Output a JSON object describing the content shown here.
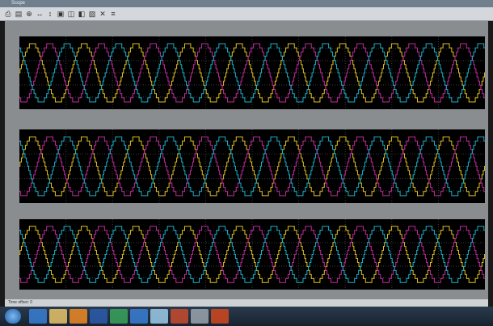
{
  "window": {
    "title": "Scope"
  },
  "toolbar": {
    "buttons": [
      {
        "name": "print-icon",
        "glyph": "⎙"
      },
      {
        "name": "parameters-icon",
        "glyph": "▤"
      },
      {
        "name": "zoom-in-icon",
        "glyph": "⊕"
      },
      {
        "name": "zoom-x-icon",
        "glyph": "↔"
      },
      {
        "name": "zoom-y-icon",
        "glyph": "↕"
      },
      {
        "name": "autoscale-icon",
        "glyph": "▣"
      },
      {
        "name": "save-axes-icon",
        "glyph": "◫"
      },
      {
        "name": "restore-axes-icon",
        "glyph": "◧"
      },
      {
        "name": "floating-scope-icon",
        "glyph": "▧"
      },
      {
        "name": "lock-axes-icon",
        "glyph": "✕"
      },
      {
        "name": "signal-selection-icon",
        "glyph": "≡"
      }
    ]
  },
  "status": {
    "text": "Time offset:  0"
  },
  "taskbar": {
    "apps": [
      {
        "name": "internet-explorer-icon",
        "color": "#3a7fd5"
      },
      {
        "name": "file-explorer-icon",
        "color": "#e9c46a"
      },
      {
        "name": "media-player-icon",
        "color": "#f08a24"
      },
      {
        "name": "word-icon",
        "color": "#2b5cab"
      },
      {
        "name": "chrome-icon",
        "color": "#3aa55c"
      },
      {
        "name": "bluetooth-icon",
        "color": "#3a7fd5"
      },
      {
        "name": "notepad-icon",
        "color": "#9ecbe8"
      },
      {
        "name": "matlab-icon",
        "color": "#c84b2f"
      },
      {
        "name": "settings-icon",
        "color": "#9aa4ae"
      },
      {
        "name": "powerpoint-icon",
        "color": "#d1481f"
      }
    ],
    "clock": {
      "time": "",
      "date": ""
    }
  },
  "colors": {
    "plot_bg": "#000000",
    "grid": "#3a3a3a",
    "series": [
      "#e0c020",
      "#c02a9a",
      "#1ab0c8"
    ]
  },
  "chart_data": [
    {
      "type": "line",
      "title": "",
      "xlabel": "",
      "ylabel": "",
      "x_ticks": [],
      "y_ticks": [],
      "series": [
        {
          "color": "#e0c020",
          "amplitude": 1,
          "phase_deg": 0,
          "cycles": 9
        },
        {
          "color": "#c02a9a",
          "amplitude": 1,
          "phase_deg": -120,
          "cycles": 9
        },
        {
          "color": "#1ab0c8",
          "amplitude": 1,
          "phase_deg": 120,
          "cycles": 9
        }
      ],
      "steps": 7
    },
    {
      "type": "line",
      "title": "",
      "xlabel": "",
      "ylabel": "",
      "x_ticks": [],
      "y_ticks": [],
      "series": [
        {
          "color": "#e0c020",
          "amplitude": 1,
          "phase_deg": 0,
          "cycles": 9
        },
        {
          "color": "#c02a9a",
          "amplitude": 1,
          "phase_deg": -120,
          "cycles": 9
        },
        {
          "color": "#1ab0c8",
          "amplitude": 1,
          "phase_deg": 120,
          "cycles": 9
        }
      ],
      "steps": 7
    },
    {
      "type": "line",
      "title": "",
      "xlabel": "",
      "ylabel": "",
      "x_ticks": [],
      "y_ticks": [],
      "series": [
        {
          "color": "#e0c020",
          "amplitude": 1,
          "phase_deg": 0,
          "cycles": 9
        },
        {
          "color": "#c02a9a",
          "amplitude": 1,
          "phase_deg": -120,
          "cycles": 9
        },
        {
          "color": "#1ab0c8",
          "amplitude": 1,
          "phase_deg": 120,
          "cycles": 9
        }
      ],
      "steps": 7
    }
  ]
}
